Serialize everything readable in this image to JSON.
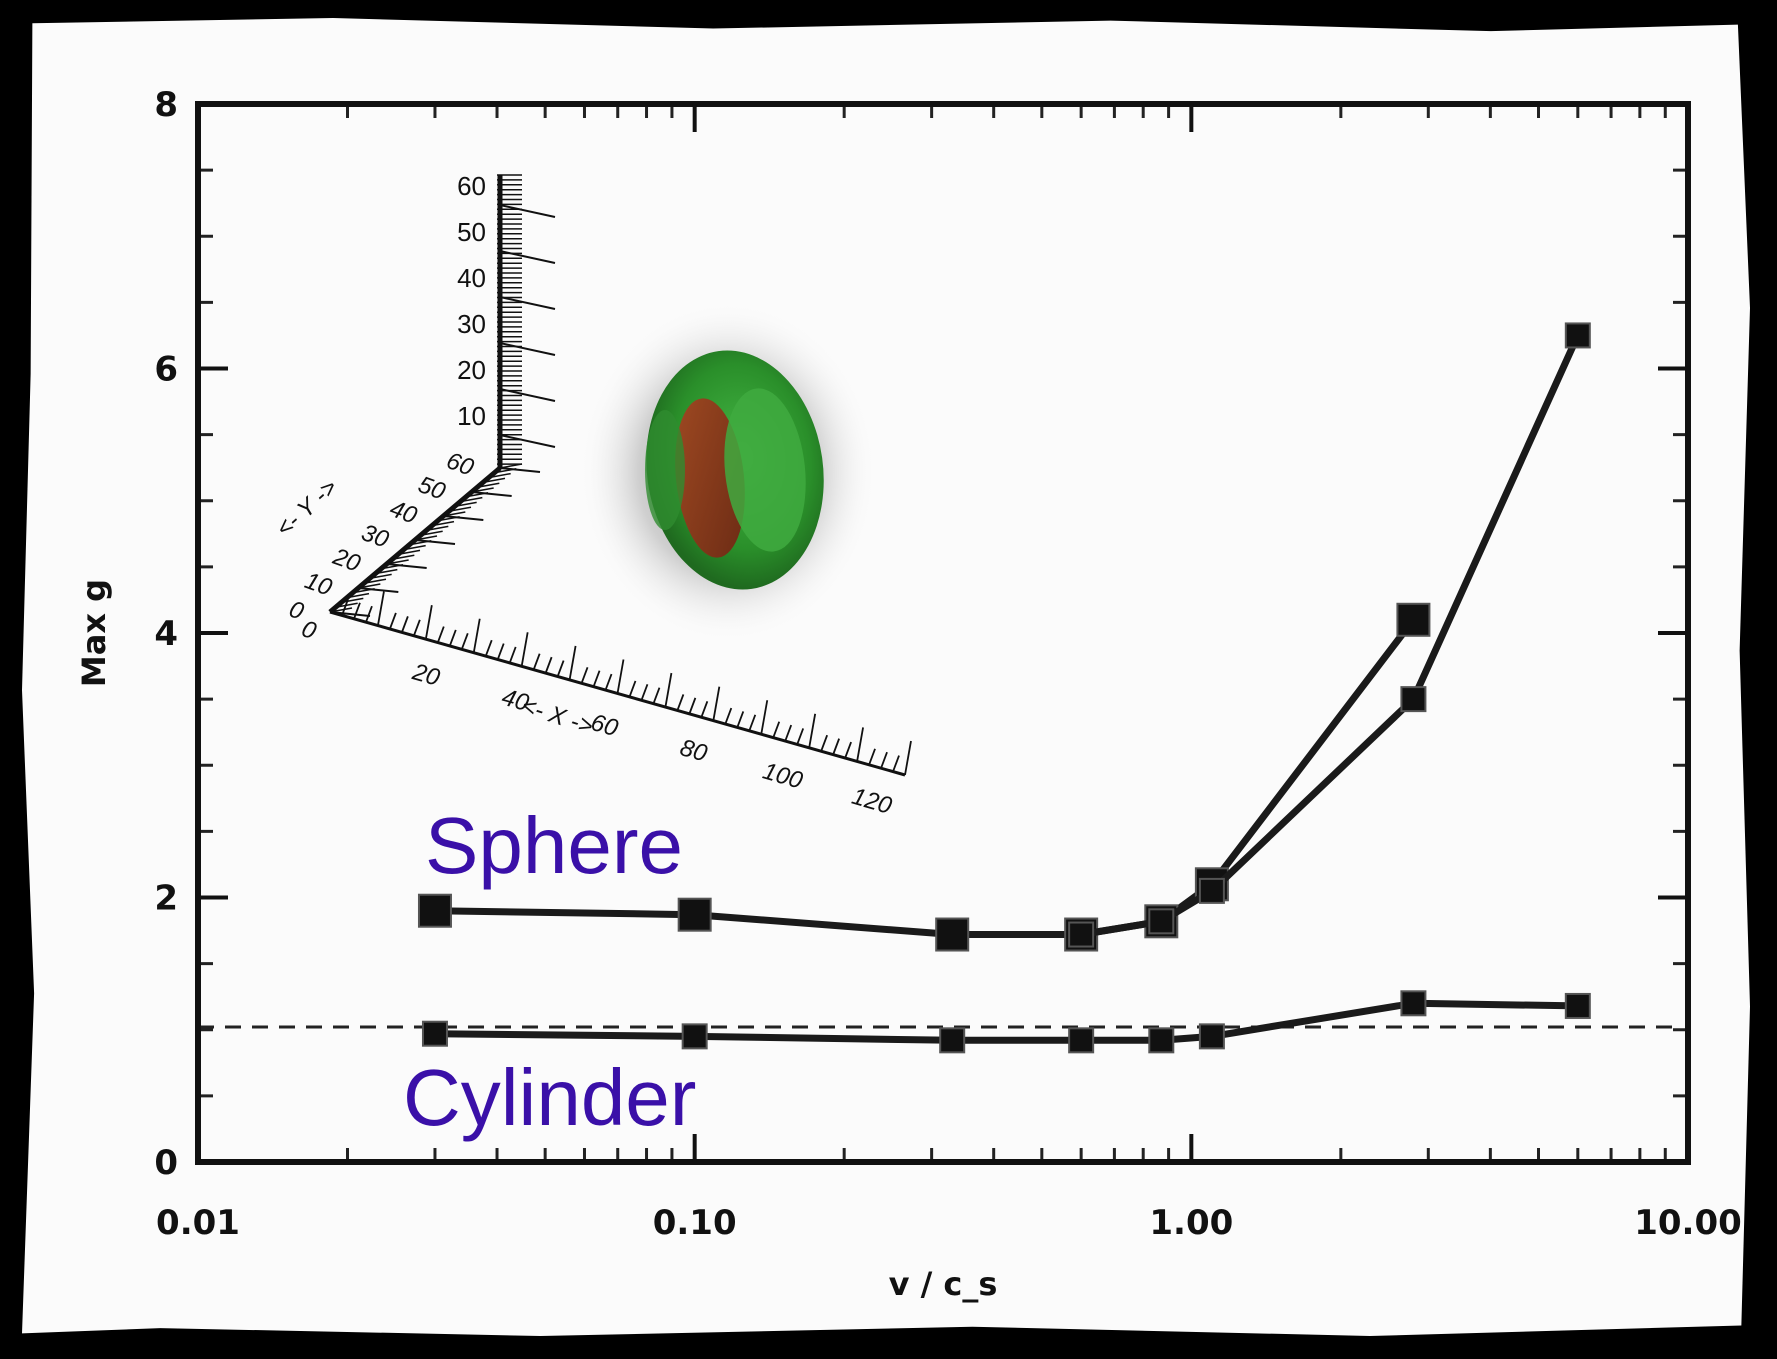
{
  "chart_data": {
    "type": "line",
    "xlabel": "v / c_s",
    "ylabel": "Max g",
    "xscale": "log",
    "xlim": [
      0.01,
      10.0
    ],
    "ylim": [
      0,
      8
    ],
    "x_tick_labels": [
      "0.01",
      "0.10",
      "1.00",
      "10.00"
    ],
    "y_tick_labels": [
      "0",
      "2",
      "4",
      "6",
      "8"
    ],
    "reference_line": {
      "y": 1.0,
      "style": "dashed"
    },
    "series": [
      {
        "x": [
          0.03,
          0.1,
          0.33,
          0.6,
          0.87,
          1.1,
          2.8
        ],
        "y": [
          1.9,
          1.87,
          1.72,
          1.72,
          1.82,
          2.1,
          4.1
        ]
      },
      {
        "x": [
          0.6,
          0.87,
          1.1,
          2.8,
          6.0
        ],
        "y": [
          1.72,
          1.82,
          2.05,
          3.5,
          6.25
        ]
      },
      {
        "x": [
          0.03,
          0.1,
          0.33,
          0.6,
          0.87,
          1.1,
          2.8,
          6.0
        ],
        "y": [
          0.97,
          0.95,
          0.92,
          0.92,
          0.92,
          0.95,
          1.2,
          1.18
        ]
      }
    ],
    "annotations": [
      "Sphere",
      "Cylinder"
    ],
    "colors": {
      "annotation": "#3a10a8",
      "line": "#1a1a1a",
      "inset_green": "#2e9a2e",
      "inset_red": "#8a3a20"
    }
  },
  "inset": {
    "z_ticks": [
      "60",
      "50",
      "40",
      "30",
      "20",
      "10"
    ],
    "y_ticks": [
      "60",
      "50",
      "40",
      "30",
      "20",
      "10",
      "0"
    ],
    "x_ticks": [
      "20",
      "40",
      "60",
      "80",
      "100",
      "120"
    ],
    "origin_label": "0",
    "x_axis_label": "<- X ->",
    "y_axis_label": "<- Y ->"
  }
}
